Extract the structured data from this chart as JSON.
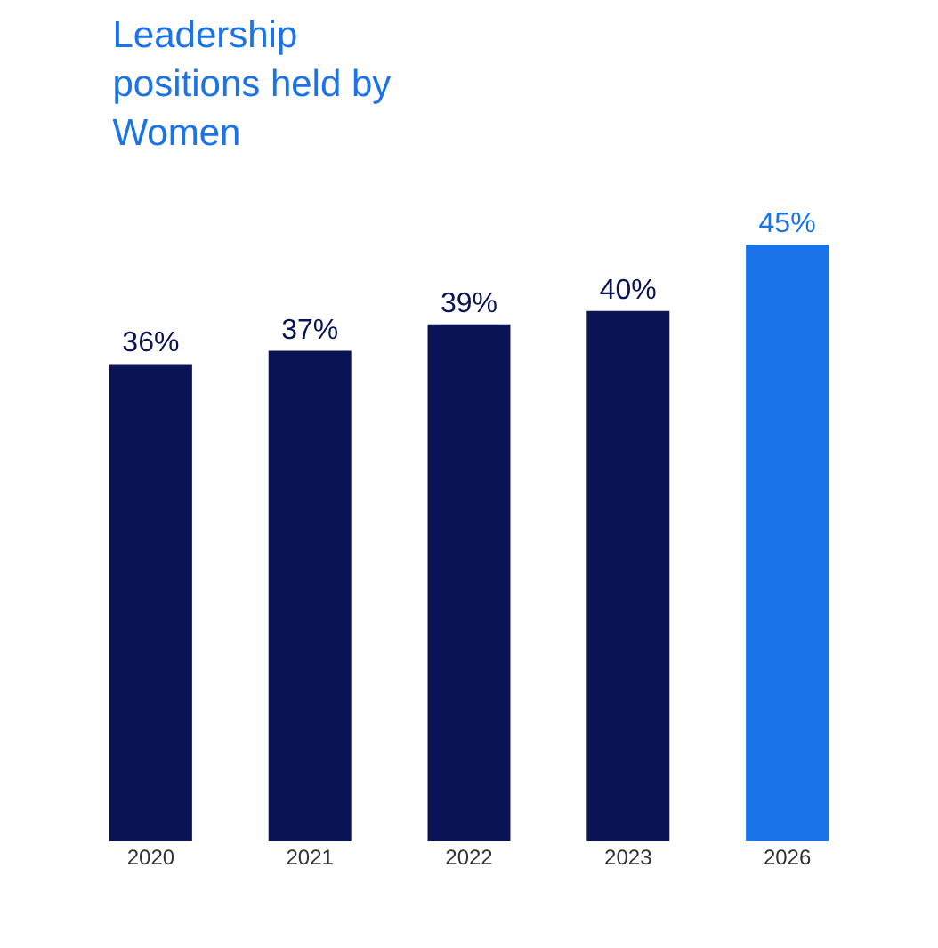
{
  "chart_data": {
    "type": "bar",
    "title": "Leadership\npositions held by\nWomen",
    "categories": [
      "2020",
      "2021",
      "2022",
      "2023",
      "2026"
    ],
    "values": [
      36,
      37,
      39,
      40,
      45
    ],
    "value_labels": [
      "36%",
      "37%",
      "39%",
      "40%",
      "45%"
    ],
    "colors": [
      "#0a1354",
      "#0a1354",
      "#0a1354",
      "#0a1354",
      "#1a73e8"
    ]
  }
}
